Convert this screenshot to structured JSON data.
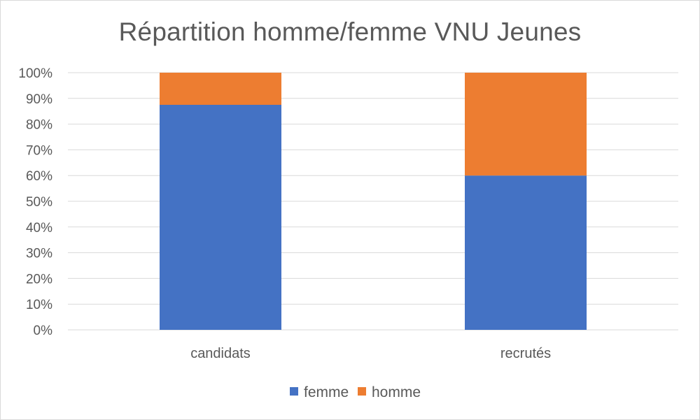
{
  "chart_data": {
    "type": "bar",
    "stacked": true,
    "percent_stacked": true,
    "title": "Répartition homme/femme VNU Jeunes",
    "xlabel": "",
    "ylabel": "",
    "categories": [
      "candidats",
      "recrutés"
    ],
    "series": [
      {
        "name": "femme",
        "values": [
          87.5,
          60
        ],
        "color": "#4472C4"
      },
      {
        "name": "homme",
        "values": [
          12.5,
          40
        ],
        "color": "#ED7D31"
      }
    ],
    "ylim": [
      0,
      100
    ],
    "y_ticks": [
      "0%",
      "10%",
      "20%",
      "30%",
      "40%",
      "50%",
      "60%",
      "70%",
      "80%",
      "90%",
      "100%"
    ],
    "grid": true,
    "legend_position": "bottom"
  }
}
